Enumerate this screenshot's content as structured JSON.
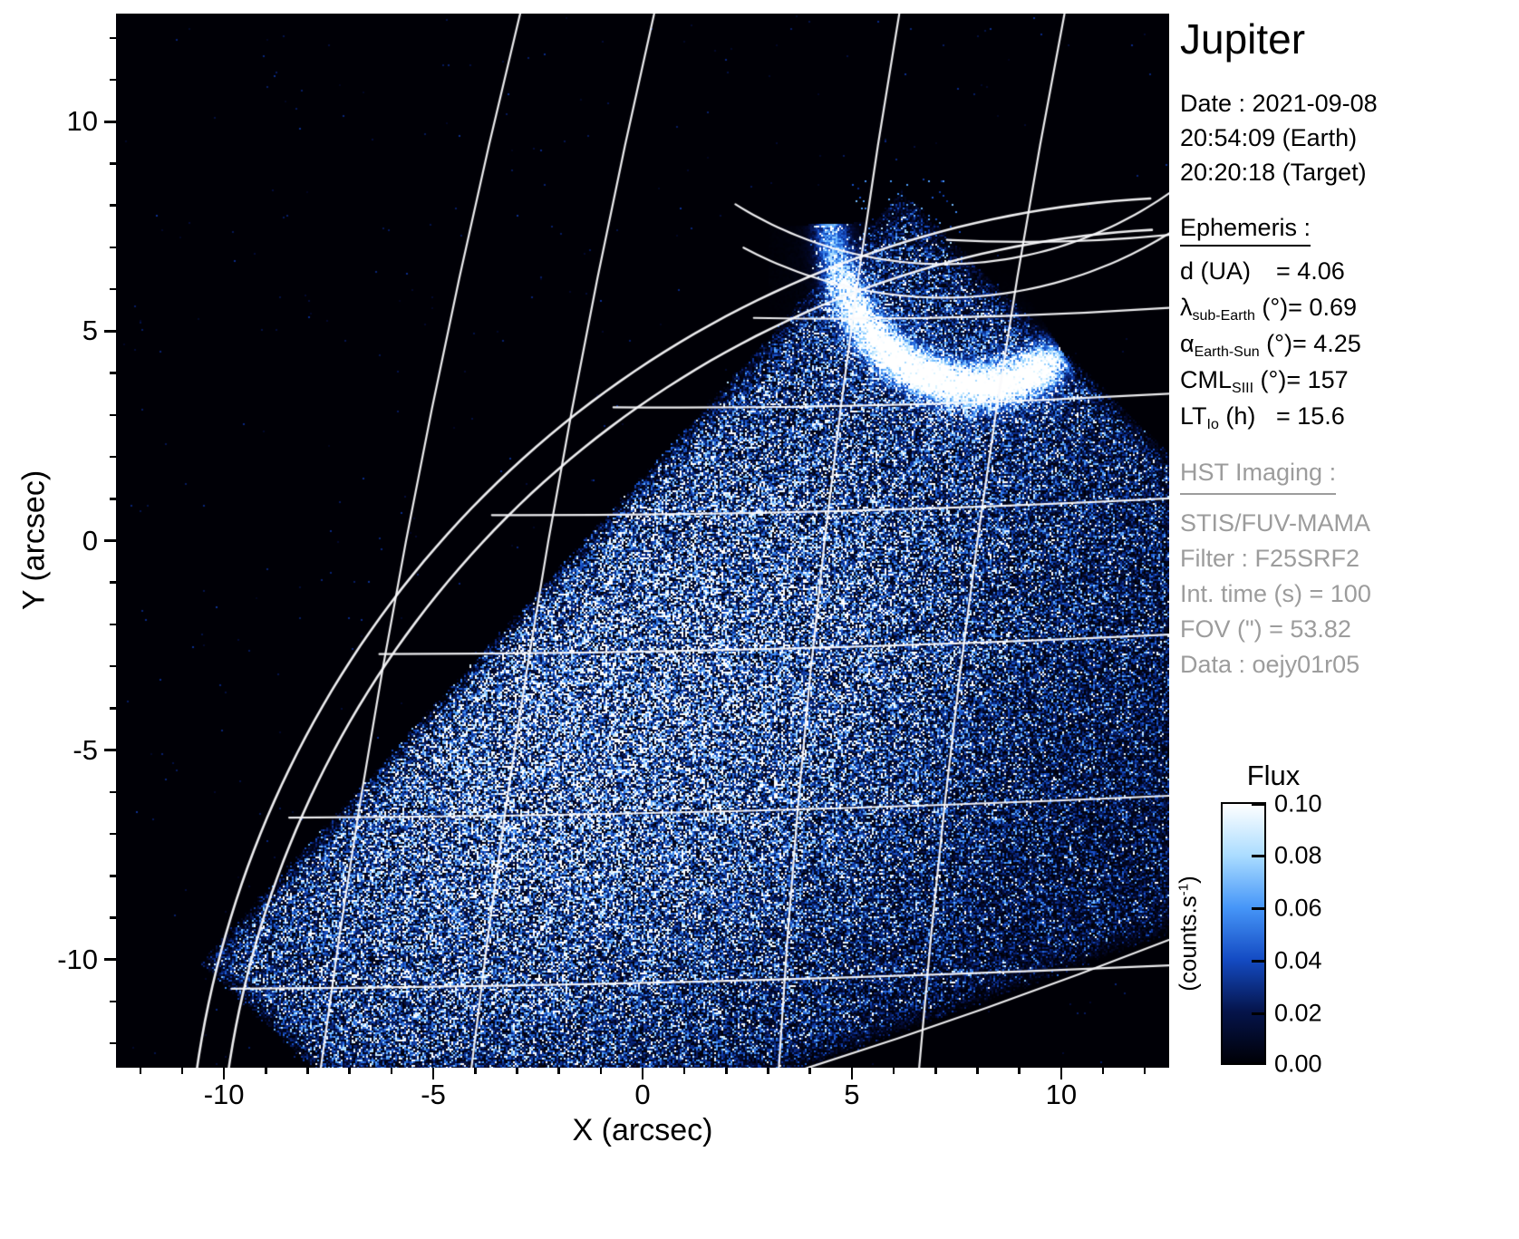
{
  "title": "Jupiter",
  "header": {
    "date_line": "Date : 2021-09-08",
    "time_earth": "20:54:09 (Earth)",
    "time_target": "20:20:18 (Target)"
  },
  "ephemeris": {
    "heading": "Ephemeris : ",
    "rows": [
      {
        "pre": "d (UA)",
        "sub": "",
        "post": "",
        "value": "= 4.06"
      },
      {
        "pre": "λ",
        "sub": "sub-Earth",
        "post": " (°)",
        "value": "= 0.69"
      },
      {
        "pre": "α",
        "sub": "Earth-Sun",
        "post": " (°)",
        "value": "= 4.25"
      },
      {
        "pre": "CML",
        "sub": "SIII",
        "post": " (°)",
        "value": "= 157"
      },
      {
        "pre": "LT",
        "sub": "Io",
        "post": " (h)",
        "value": "= 15.6"
      }
    ]
  },
  "hst": {
    "heading": "HST Imaging : ",
    "lines": [
      "STIS/FUV-MAMA",
      "Filter : F25SRF2",
      "Int. time (s) = 100",
      "FOV (\") = 53.82",
      "Data : oejy01r05"
    ]
  },
  "colorbar": {
    "title": "Flux",
    "unit_pre": "(counts.s",
    "unit_sup": "-1",
    "unit_post": ")",
    "tick_labels": [
      "0.10",
      "0.08",
      "0.06",
      "0.04",
      "0.02",
      "0.00"
    ]
  },
  "chart_data": {
    "type": "heatmap",
    "title": "Jupiter HST STIS/FUV-MAMA image with auroral arc",
    "xlabel": "X (arcsec)",
    "ylabel": "Y (arcsec)",
    "xlim": [
      -12.58,
      12.58
    ],
    "ylim": [
      -12.58,
      12.58
    ],
    "xticks": [
      -10,
      -5,
      0,
      5,
      10
    ],
    "yticks": [
      10,
      5,
      0,
      -5,
      -10
    ],
    "flux_range": [
      0.0,
      0.1
    ],
    "colorbar_ticks": [
      0.1,
      0.08,
      0.06,
      0.04,
      0.02,
      0.0
    ],
    "colormap_stops": [
      [
        0.0,
        [
          0,
          0,
          6
        ]
      ],
      [
        0.015,
        [
          3,
          10,
          50
        ]
      ],
      [
        0.03,
        [
          10,
          42,
          135
        ]
      ],
      [
        0.045,
        [
          25,
          85,
          205
        ]
      ],
      [
        0.06,
        [
          70,
          150,
          248
        ]
      ],
      [
        0.075,
        [
          140,
          205,
          255
        ]
      ],
      [
        0.09,
        [
          215,
          242,
          255
        ]
      ],
      [
        0.105,
        [
          255,
          255,
          255
        ]
      ]
    ],
    "aperture_polygon": [
      [
        6.2,
        8.3
      ],
      [
        13.0,
        1.6
      ],
      [
        12.9,
        -9.2
      ],
      [
        3.2,
        -12.8
      ],
      [
        -7.6,
        -12.8
      ],
      [
        -10.5,
        -10.1
      ]
    ],
    "disk_brightness": {
      "center": [
        -0.5,
        -4.5
      ],
      "angle_deg": 42,
      "sigma_major": 8.0,
      "sigma_minor": 4.6,
      "base": 0.016,
      "peak": 0.052
    },
    "limb": {
      "center": [
        13.4,
        -16.1
      ],
      "radii": [
        24.3,
        23.55
      ],
      "angle_range_deg": [
        93,
        196
      ]
    },
    "parallels": {
      "slope": 0.025,
      "y0": [
        7.0,
        5.25,
        3.2,
        0.7,
        -2.55,
        -6.4,
        -10.45
      ]
    },
    "meridians": [
      {
        "top_x": -2.9,
        "bottom_x": -7.7
      },
      {
        "top_x": 0.3,
        "bottom_x": -4.1
      },
      {
        "top_x": 6.15,
        "bottom_x": 3.25
      },
      {
        "top_x": 10.1,
        "bottom_x": 6.6
      }
    ],
    "aurora_ovals": [
      {
        "center": [
          7.2,
          16.0
        ],
        "r": 9.4,
        "angles": [
          -122,
          -44
        ]
      },
      {
        "center": [
          7.2,
          16.0
        ],
        "r": 10.2,
        "angles": [
          -118,
          -47
        ]
      }
    ],
    "lower_boundary_line": [
      [
        3.25,
        -12.8
      ],
      [
        12.9,
        -9.4
      ]
    ],
    "aurora_crescent": {
      "center": [
        8.0,
        7.7
      ],
      "rx": 3.5,
      "ry": 4.0,
      "t_range_deg": [
        182,
        306
      ],
      "width_arcsec": 0.42,
      "peak_flux": 0.12
    }
  }
}
